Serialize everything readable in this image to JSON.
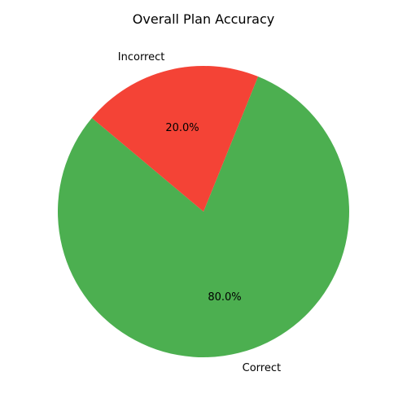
{
  "chart_data": {
    "type": "pie",
    "title": "Overall Plan Accuracy",
    "slices": [
      {
        "label": "Correct",
        "value": 80.0,
        "pct_label": "80.0%",
        "color": "#4caf50"
      },
      {
        "label": "Incorrect",
        "value": 20.0,
        "pct_label": "20.0%",
        "color": "#f44336"
      }
    ],
    "start_angle_deg": 140,
    "direction": "counterclockwise"
  }
}
